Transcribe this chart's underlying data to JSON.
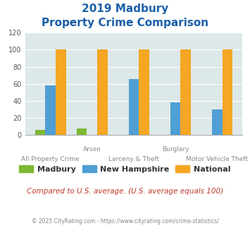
{
  "title_line1": "2019 Madbury",
  "title_line2": "Property Crime Comparison",
  "categories": [
    "All Property Crime",
    "Arson",
    "Larceny & Theft",
    "Burglary",
    "Motor Vehicle Theft"
  ],
  "madbury": [
    6,
    8,
    0,
    0,
    0
  ],
  "new_hampshire": [
    58,
    0,
    66,
    38,
    30
  ],
  "national": [
    100,
    100,
    100,
    100,
    100
  ],
  "madbury_color": "#7db832",
  "nh_color": "#4f9fd4",
  "national_color": "#f5a623",
  "bg_color": "#dde8e8",
  "ylim": [
    0,
    120
  ],
  "yticks": [
    0,
    20,
    40,
    60,
    80,
    100,
    120
  ],
  "footer_text": "Compared to U.S. average. (U.S. average equals 100)",
  "copyright_text": "© 2025 CityRating.com - https://www.cityrating.com/crime-statistics/",
  "title_color": "#1a5fa8",
  "footer_color": "#c0392b",
  "copyright_color": "#888888",
  "bar_width": 0.25,
  "upper_labels": {
    "1": "Arson",
    "3": "Burglary"
  },
  "lower_labels": {
    "0": "All Property Crime",
    "2": "Larceny & Theft",
    "4": "Motor Vehicle Theft"
  }
}
